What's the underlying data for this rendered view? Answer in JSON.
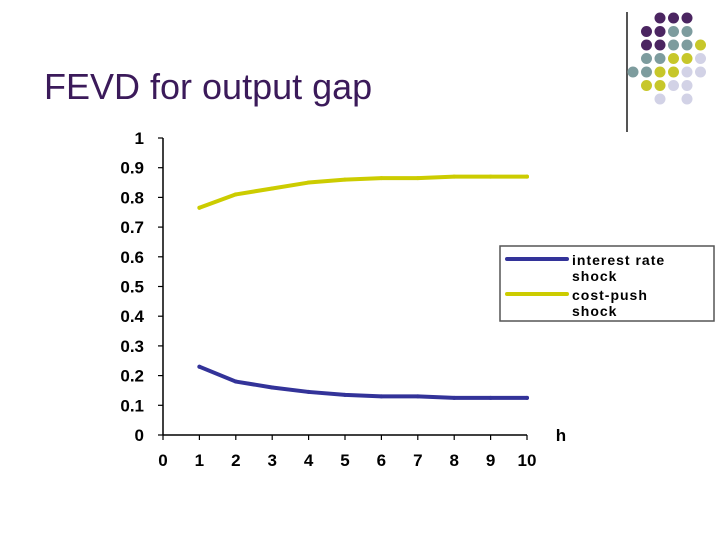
{
  "slide": {
    "title": "FEVD for output gap"
  },
  "decoration": {
    "dot_colors": {
      "purple": "#4b2561",
      "teal": "#7d9c9e",
      "olive": "#c7c72a",
      "lavender": "#d2d2e6"
    },
    "line_color": "#555555"
  },
  "chart_data": {
    "type": "line",
    "x": [
      1,
      2,
      3,
      4,
      5,
      6,
      7,
      8,
      9,
      10
    ],
    "series": [
      {
        "name": "interest rate shock",
        "legend_lines": [
          "interest rate",
          "shock"
        ],
        "color": "#333399",
        "values": [
          0.23,
          0.18,
          0.16,
          0.145,
          0.135,
          0.13,
          0.13,
          0.125,
          0.125,
          0.125
        ]
      },
      {
        "name": "cost-push shock",
        "legend_lines": [
          "cost-push",
          "shock"
        ],
        "color": "#cccc00",
        "values": [
          0.765,
          0.81,
          0.83,
          0.85,
          0.86,
          0.865,
          0.865,
          0.87,
          0.87,
          0.87
        ]
      }
    ],
    "xlabel": "h",
    "ylabel": "",
    "title": "",
    "xlim": [
      0,
      10
    ],
    "ylim": [
      0,
      1
    ],
    "x_ticks": [
      "0",
      "1",
      "2",
      "3",
      "4",
      "5",
      "6",
      "7",
      "8",
      "9",
      "10"
    ],
    "y_ticks": [
      "0",
      "0.1",
      "0.2",
      "0.3",
      "0.4",
      "0.5",
      "0.6",
      "0.7",
      "0.8",
      "0.9",
      "1"
    ],
    "grid": false,
    "legend_position": "right"
  }
}
